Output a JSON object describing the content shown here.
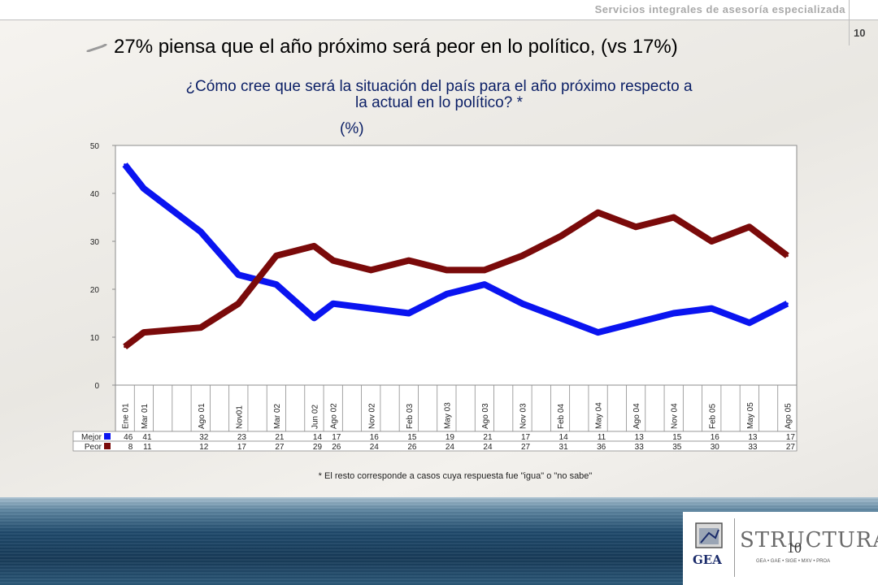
{
  "header": {
    "company": "Servicios integrales de asesoría especializada",
    "page_number": "10"
  },
  "slide": {
    "title": "27% piensa que el año próximo será peor en lo político, (vs 17%)",
    "question_line1": "¿Cómo cree que será la situación del país para el año próximo respecto a",
    "question_line2": "la actual en lo político? *",
    "unit": "(%)",
    "footnote": "* El resto corresponde a casos cuya respuesta fue \"igua\" o \"no sabe\""
  },
  "chart_data": {
    "type": "line",
    "categories": [
      "Ene 01",
      "Mar 01",
      "",
      "",
      "Ago 01",
      "",
      "Nov01",
      "",
      "Mar 02",
      "",
      "Jun 02",
      "Ago 02",
      "",
      "Nov 02",
      "",
      "Feb 03",
      "",
      "May 03",
      "",
      "Ago 03",
      "",
      "Nov 03",
      "",
      "Feb 04",
      "",
      "May 04",
      "",
      "Ago 04",
      "",
      "Nov 04",
      "",
      "Feb 05",
      "",
      "May 05",
      "",
      "Ago 05"
    ],
    "series": [
      {
        "name": "Mejor",
        "color": "#0a14f0",
        "values": [
          46,
          41,
          null,
          null,
          32,
          null,
          23,
          null,
          21,
          null,
          14,
          17,
          null,
          16,
          null,
          15,
          null,
          19,
          null,
          21,
          null,
          17,
          null,
          14,
          null,
          11,
          null,
          13,
          null,
          15,
          null,
          16,
          null,
          13,
          null,
          17
        ]
      },
      {
        "name": "Peor",
        "color": "#7a0a0a",
        "values": [
          8,
          11,
          null,
          null,
          12,
          null,
          17,
          null,
          27,
          null,
          29,
          26,
          null,
          24,
          null,
          26,
          null,
          24,
          null,
          24,
          null,
          27,
          null,
          31,
          null,
          36,
          null,
          33,
          null,
          35,
          null,
          30,
          null,
          33,
          null,
          27
        ]
      }
    ],
    "ylim": [
      0,
      50
    ],
    "yticks": [
      0,
      10,
      20,
      30,
      40,
      50
    ],
    "grid": false,
    "legend": "data-table"
  },
  "logos": {
    "left": "GEA",
    "right": "STRUCTURA",
    "right_sub": "GEA • GAE • SIGE • MXV • PROA",
    "overlay_number": "10"
  }
}
